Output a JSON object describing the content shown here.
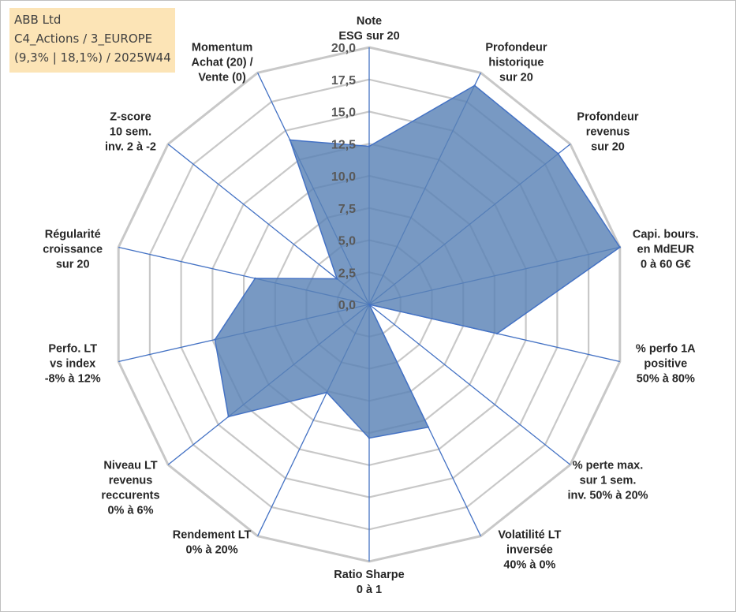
{
  "info": {
    "line1": "ABB Ltd",
    "line2": "C4_Actions / 3_EUROPE",
    "line3": "(9,3% | 18,1%) / 2025W44"
  },
  "chart_data": {
    "type": "radar",
    "rlim": [
      0,
      20
    ],
    "ticks": [
      "0,0",
      "2,5",
      "5,0",
      "7,5",
      "10,0",
      "12,5",
      "15,0",
      "17,5",
      "20,0"
    ],
    "axes": [
      {
        "lines": [
          "Note",
          "ESG sur 20"
        ],
        "value": 12.3
      },
      {
        "lines": [
          "Profondeur",
          "historique",
          "sur 20"
        ],
        "value": 18.9
      },
      {
        "lines": [
          "Profondeur",
          "revenus",
          "sur 20"
        ],
        "value": 18.8
      },
      {
        "lines": [
          "Capi. bours.",
          "en MdEUR",
          "0 à 60 G€"
        ],
        "value": 20.0
      },
      {
        "lines": [
          "% perfo 1A",
          "positive",
          "50% à 80%"
        ],
        "value": 10.2
      },
      {
        "lines": [
          "% perte max.",
          "sur 1 sem.",
          "inv. 50% à 20%"
        ],
        "value": 0.0
      },
      {
        "lines": [
          "Volatilité LT",
          "inversée",
          "40% à 0%"
        ],
        "value": 10.6
      },
      {
        "lines": [
          "Ratio Sharpe",
          "0 à 1"
        ],
        "value": 10.4
      },
      {
        "lines": [
          "Rendement LT",
          "0% à 20%"
        ],
        "value": 7.6
      },
      {
        "lines": [
          "Niveau LT",
          "revenus",
          "reccurents",
          "0% à 6%"
        ],
        "value": 14.0
      },
      {
        "lines": [
          "Perfo. LT",
          "vs index",
          "-8% à 12%"
        ],
        "value": 12.3
      },
      {
        "lines": [
          "Régularité",
          "croissance",
          "sur 20"
        ],
        "value": 9.1
      },
      {
        "lines": [
          "Z-score",
          "10 sem.",
          "inv. 2 à -2"
        ],
        "value": 3.2
      },
      {
        "lines": [
          "Momentum",
          "Achat (20) /",
          "Vente (0)"
        ],
        "value": 14.2
      }
    ],
    "colors": {
      "fill": "#5a82b6",
      "stroke": "#4472c4",
      "grid": "#c8c8c8",
      "spoke": "#4472c4"
    }
  }
}
